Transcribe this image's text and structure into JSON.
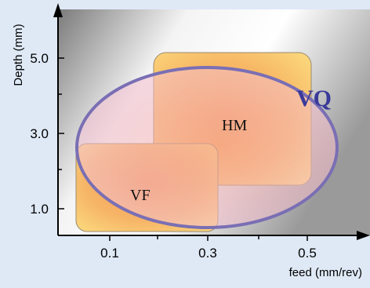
{
  "diagram": {
    "y_axis_label": "Depth (mm)",
    "x_axis_label": "feed (mm/rev)",
    "y_ticks": [
      "5.0",
      "3.0",
      "1.0"
    ],
    "x_ticks": [
      "0.1",
      "0.3",
      "0.5"
    ],
    "regions": [
      {
        "label": "VQ",
        "shape": "ellipse",
        "color": "#7a6fb4"
      },
      {
        "label": "HM",
        "shape": "rounded-rectangle",
        "color": "#f6c06a"
      },
      {
        "label": "VF",
        "shape": "rounded-rectangle",
        "color": "#f6c06a"
      }
    ]
  }
}
